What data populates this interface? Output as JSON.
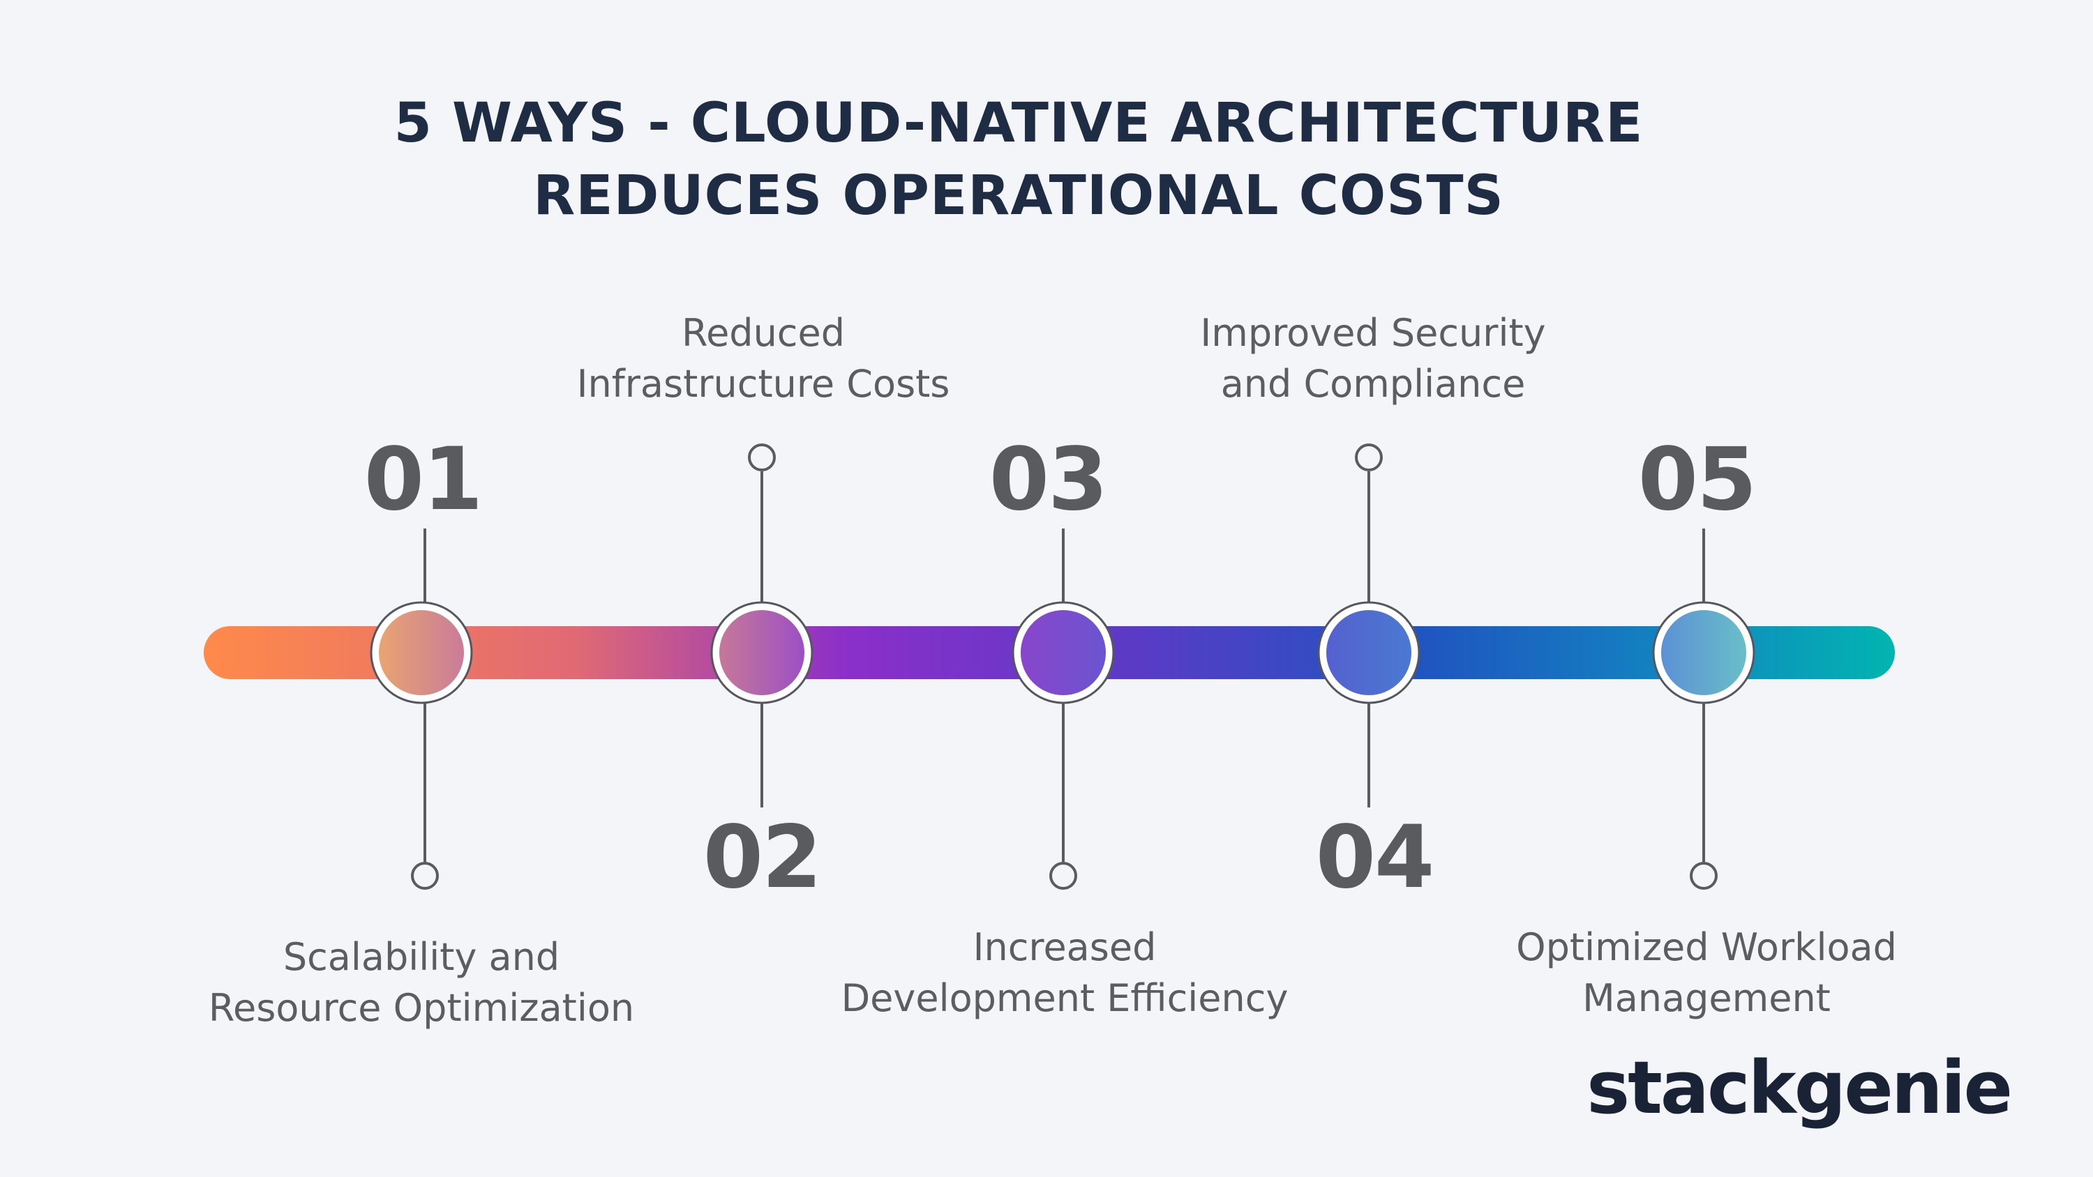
{
  "title": {
    "line1": "5 WAYS - CLOUD-NATIVE ARCHITECTURE",
    "line2": "REDUCES OPERATIONAL COSTS"
  },
  "steps": [
    {
      "number": "01",
      "label_line1": "Scalability and",
      "label_line2": "Resource Optimization",
      "color": "#d89a7a"
    },
    {
      "number": "02",
      "label_line1": "Reduced",
      "label_line2": "Infrastructure Costs",
      "color": "#b86a9c"
    },
    {
      "number": "03",
      "label_line1": "Increased",
      "label_line2": "Development Efficiency",
      "color": "#7a3fc8"
    },
    {
      "number": "04",
      "label_line1": "Improved Security",
      "label_line2": "and Compliance",
      "color": "#4d6fd0"
    },
    {
      "number": "05",
      "label_line1": "Optimized Workload",
      "label_line2": "Management",
      "color": "#5aa0d0"
    }
  ],
  "colors": {
    "bar_start": "#ff8a4a",
    "bar_mid1": "#8b2fc9",
    "bar_mid2": "#1f55c0",
    "bar_end": "#00b5b0",
    "title": "#1f2d44",
    "text": "#5c5d60"
  },
  "logo": {
    "text": "stackgenie"
  }
}
